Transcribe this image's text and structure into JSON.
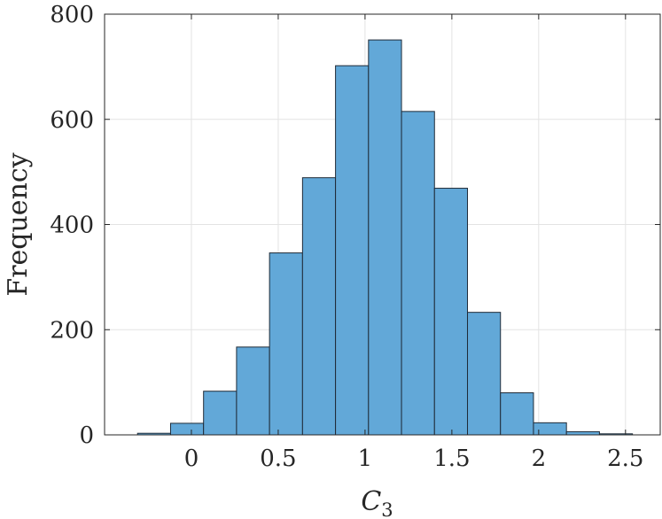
{
  "chart_data": {
    "type": "bar",
    "bin_edges": [
      -0.31,
      -0.12,
      0.07,
      0.26,
      0.45,
      0.64,
      0.83,
      1.02,
      1.21,
      1.4,
      1.59,
      1.78,
      1.97,
      2.16,
      2.35,
      2.54
    ],
    "values": [
      3,
      22,
      83,
      167,
      346,
      489,
      702,
      751,
      615,
      469,
      233,
      80,
      23,
      6,
      2
    ],
    "xlabel_main": "C",
    "xlabel_sub": "3",
    "ylabel": "Frequency",
    "xlim": [
      -0.5,
      2.7
    ],
    "ylim": [
      0,
      800
    ],
    "xticks": [
      0,
      0.5,
      1,
      1.5,
      2,
      2.5
    ],
    "xtick_labels": [
      "0",
      "0.5",
      "1",
      "1.5",
      "2",
      "2.5"
    ],
    "yticks": [
      0,
      200,
      400,
      600,
      800
    ],
    "ytick_labels": [
      "0",
      "200",
      "400",
      "600",
      "800"
    ],
    "grid": true,
    "colors": {
      "bar_fill": "#62a8d8",
      "bar_edge": "#1f2b38",
      "axis": "#262626",
      "grid": "#e3e3e3"
    }
  }
}
